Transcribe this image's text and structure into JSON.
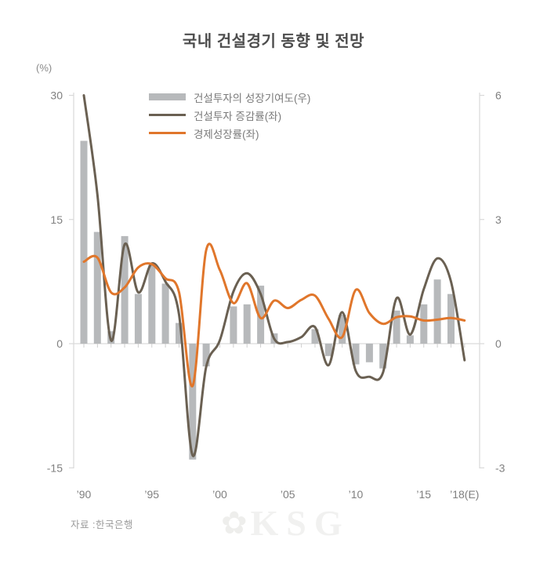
{
  "title": "국내 건설경기 동향 및 전망",
  "source": "자료 :한국은행",
  "watermark": {
    "text": "KSG",
    "emblem": "sun-emblem"
  },
  "legend": {
    "items": [
      {
        "label": "건설투자의 성장기여도(우)",
        "type": "bar",
        "color": "#b7b9bb"
      },
      {
        "label": "건설투자 증감률(좌)",
        "type": "line",
        "color": "#6a6052"
      },
      {
        "label": "경제성장률(좌)",
        "type": "line",
        "color": "#e0762b"
      }
    ]
  },
  "colors": {
    "bar": "#b7b9bb",
    "construction_line": "#6a6052",
    "gdp_line": "#e0762b",
    "axis": "#d9d9d9",
    "tick": "#cfcfcf",
    "tick_text": "#808080"
  },
  "chart_data": {
    "type": "combo-bar-line",
    "title": "국내 건설경기 동향 및 전망",
    "left_axis": {
      "unit": "(%)",
      "ticks": [
        30,
        15,
        0,
        -15
      ],
      "range": [
        -15,
        30
      ]
    },
    "right_axis": {
      "ticks": [
        6,
        3,
        0,
        -3
      ],
      "range": [
        -3,
        6
      ]
    },
    "x": [
      1990,
      1991,
      1992,
      1993,
      1994,
      1995,
      1996,
      1997,
      1998,
      1999,
      2000,
      2001,
      2002,
      2003,
      2004,
      2005,
      2006,
      2007,
      2008,
      2009,
      2010,
      2011,
      2012,
      2013,
      2014,
      2015,
      2016,
      2017,
      2018
    ],
    "x_tick_labels": [
      {
        "year": 1990,
        "text": "’90"
      },
      {
        "year": 1995,
        "text": "’95"
      },
      {
        "year": 2000,
        "text": "’00"
      },
      {
        "year": 2005,
        "text": "’05"
      },
      {
        "year": 2010,
        "text": "’10"
      },
      {
        "year": 2015,
        "text": "’15"
      },
      {
        "year": 2018,
        "text": "’18(E)"
      }
    ],
    "series": [
      {
        "name": "건설투자의 성장기여도(우)",
        "type": "bar",
        "axis": "right",
        "color": "#b7b9bb",
        "values": [
          4.9,
          2.7,
          0.3,
          2.6,
          1.2,
          1.9,
          1.45,
          0.5,
          -2.8,
          -0.55,
          0,
          0.9,
          0.95,
          1.4,
          0.25,
          0,
          0,
          0.35,
          -0.3,
          0.7,
          -0.5,
          -0.45,
          -0.6,
          0.8,
          0.2,
          0.95,
          1.55,
          1.2,
          0
        ]
      },
      {
        "name": "건설투자 증감률(좌)",
        "type": "line",
        "axis": "left",
        "color": "#6a6052",
        "values": [
          30,
          18,
          0.4,
          12,
          6.2,
          9.7,
          7.5,
          3.5,
          -13.5,
          -2.8,
          0.4,
          6.3,
          8.5,
          6,
          0.6,
          0.2,
          0.8,
          2,
          -2.6,
          3.8,
          -3.3,
          -4,
          -3.5,
          5.5,
          1.1,
          6.6,
          10.3,
          7.5,
          -2
        ]
      },
      {
        "name": "경제성장률(좌)",
        "type": "line",
        "axis": "left",
        "color": "#e0762b",
        "values": [
          9.9,
          10.4,
          6.2,
          6.8,
          9.2,
          9.6,
          7.9,
          6.2,
          -5.1,
          11.3,
          8.9,
          4.9,
          7.3,
          3.1,
          5.2,
          4.3,
          5.3,
          5.8,
          3,
          0.8,
          6.5,
          3.7,
          2.4,
          3.2,
          3.3,
          2.8,
          2.9,
          3.1,
          2.8
        ]
      }
    ],
    "grid": false,
    "legend_position": "inside-top-left"
  }
}
